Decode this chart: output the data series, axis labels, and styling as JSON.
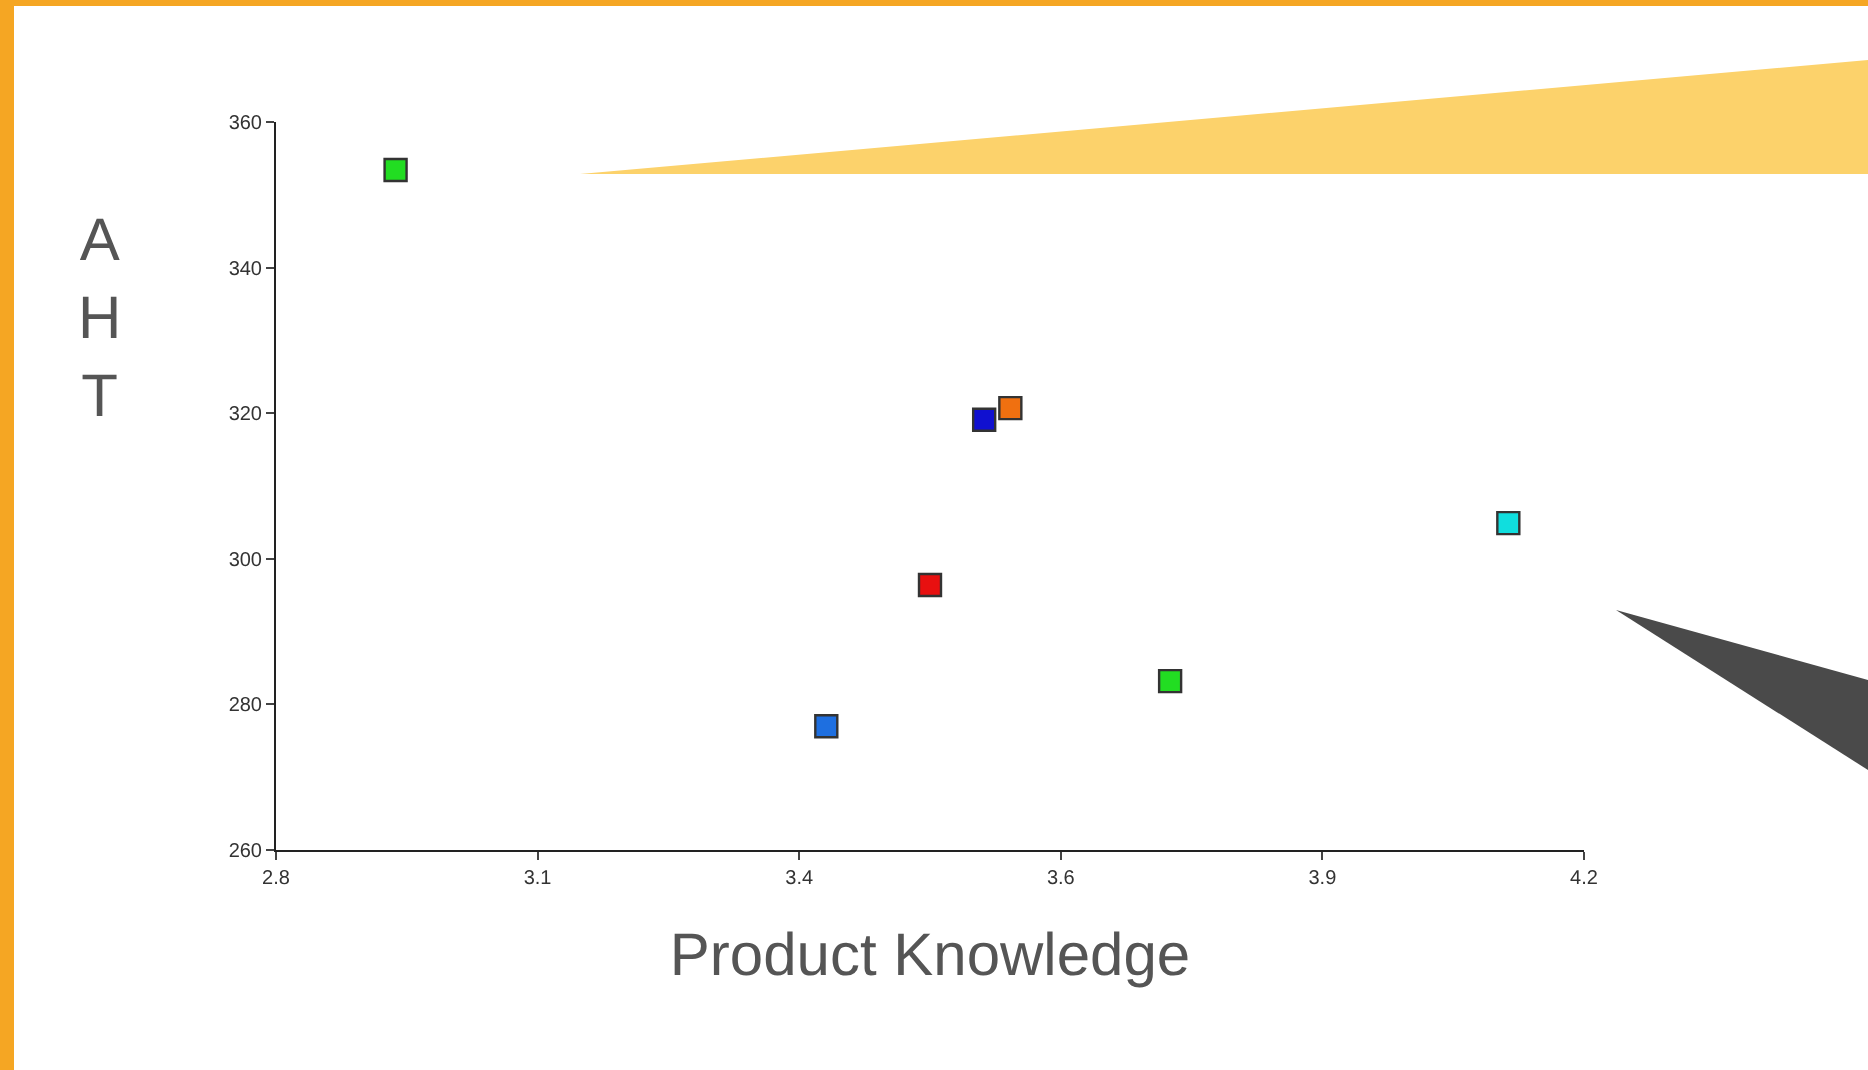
{
  "chart_data": {
    "type": "scatter",
    "xlabel": "Product Knowledge",
    "ylabel": "AHT",
    "x": [
      2.928,
      3.389,
      3.5,
      3.558,
      3.586,
      3.757,
      4.119
    ],
    "values": [
      353.4,
      277,
      296.4,
      319.1,
      320.7,
      283.2,
      304.9
    ],
    "colors": [
      "#22dd22",
      "#1e6fe0",
      "#e81010",
      "#1010d0",
      "#f07010",
      "#22dd22",
      "#10dede"
    ],
    "marker": "square",
    "grid": false,
    "xlim": [
      2.8,
      4.2
    ],
    "xticks": [
      2.8,
      {
        "value": 3.08,
        "label": "3.1"
      },
      {
        "value": 3.36,
        "label": "3.4"
      },
      {
        "value": 3.64,
        "label": "3.6"
      },
      {
        "value": 3.92,
        "label": "3.9"
      },
      4.2
    ],
    "ylim": [
      260,
      360
    ],
    "yticks": [
      260,
      280,
      300,
      320,
      340,
      360
    ]
  }
}
